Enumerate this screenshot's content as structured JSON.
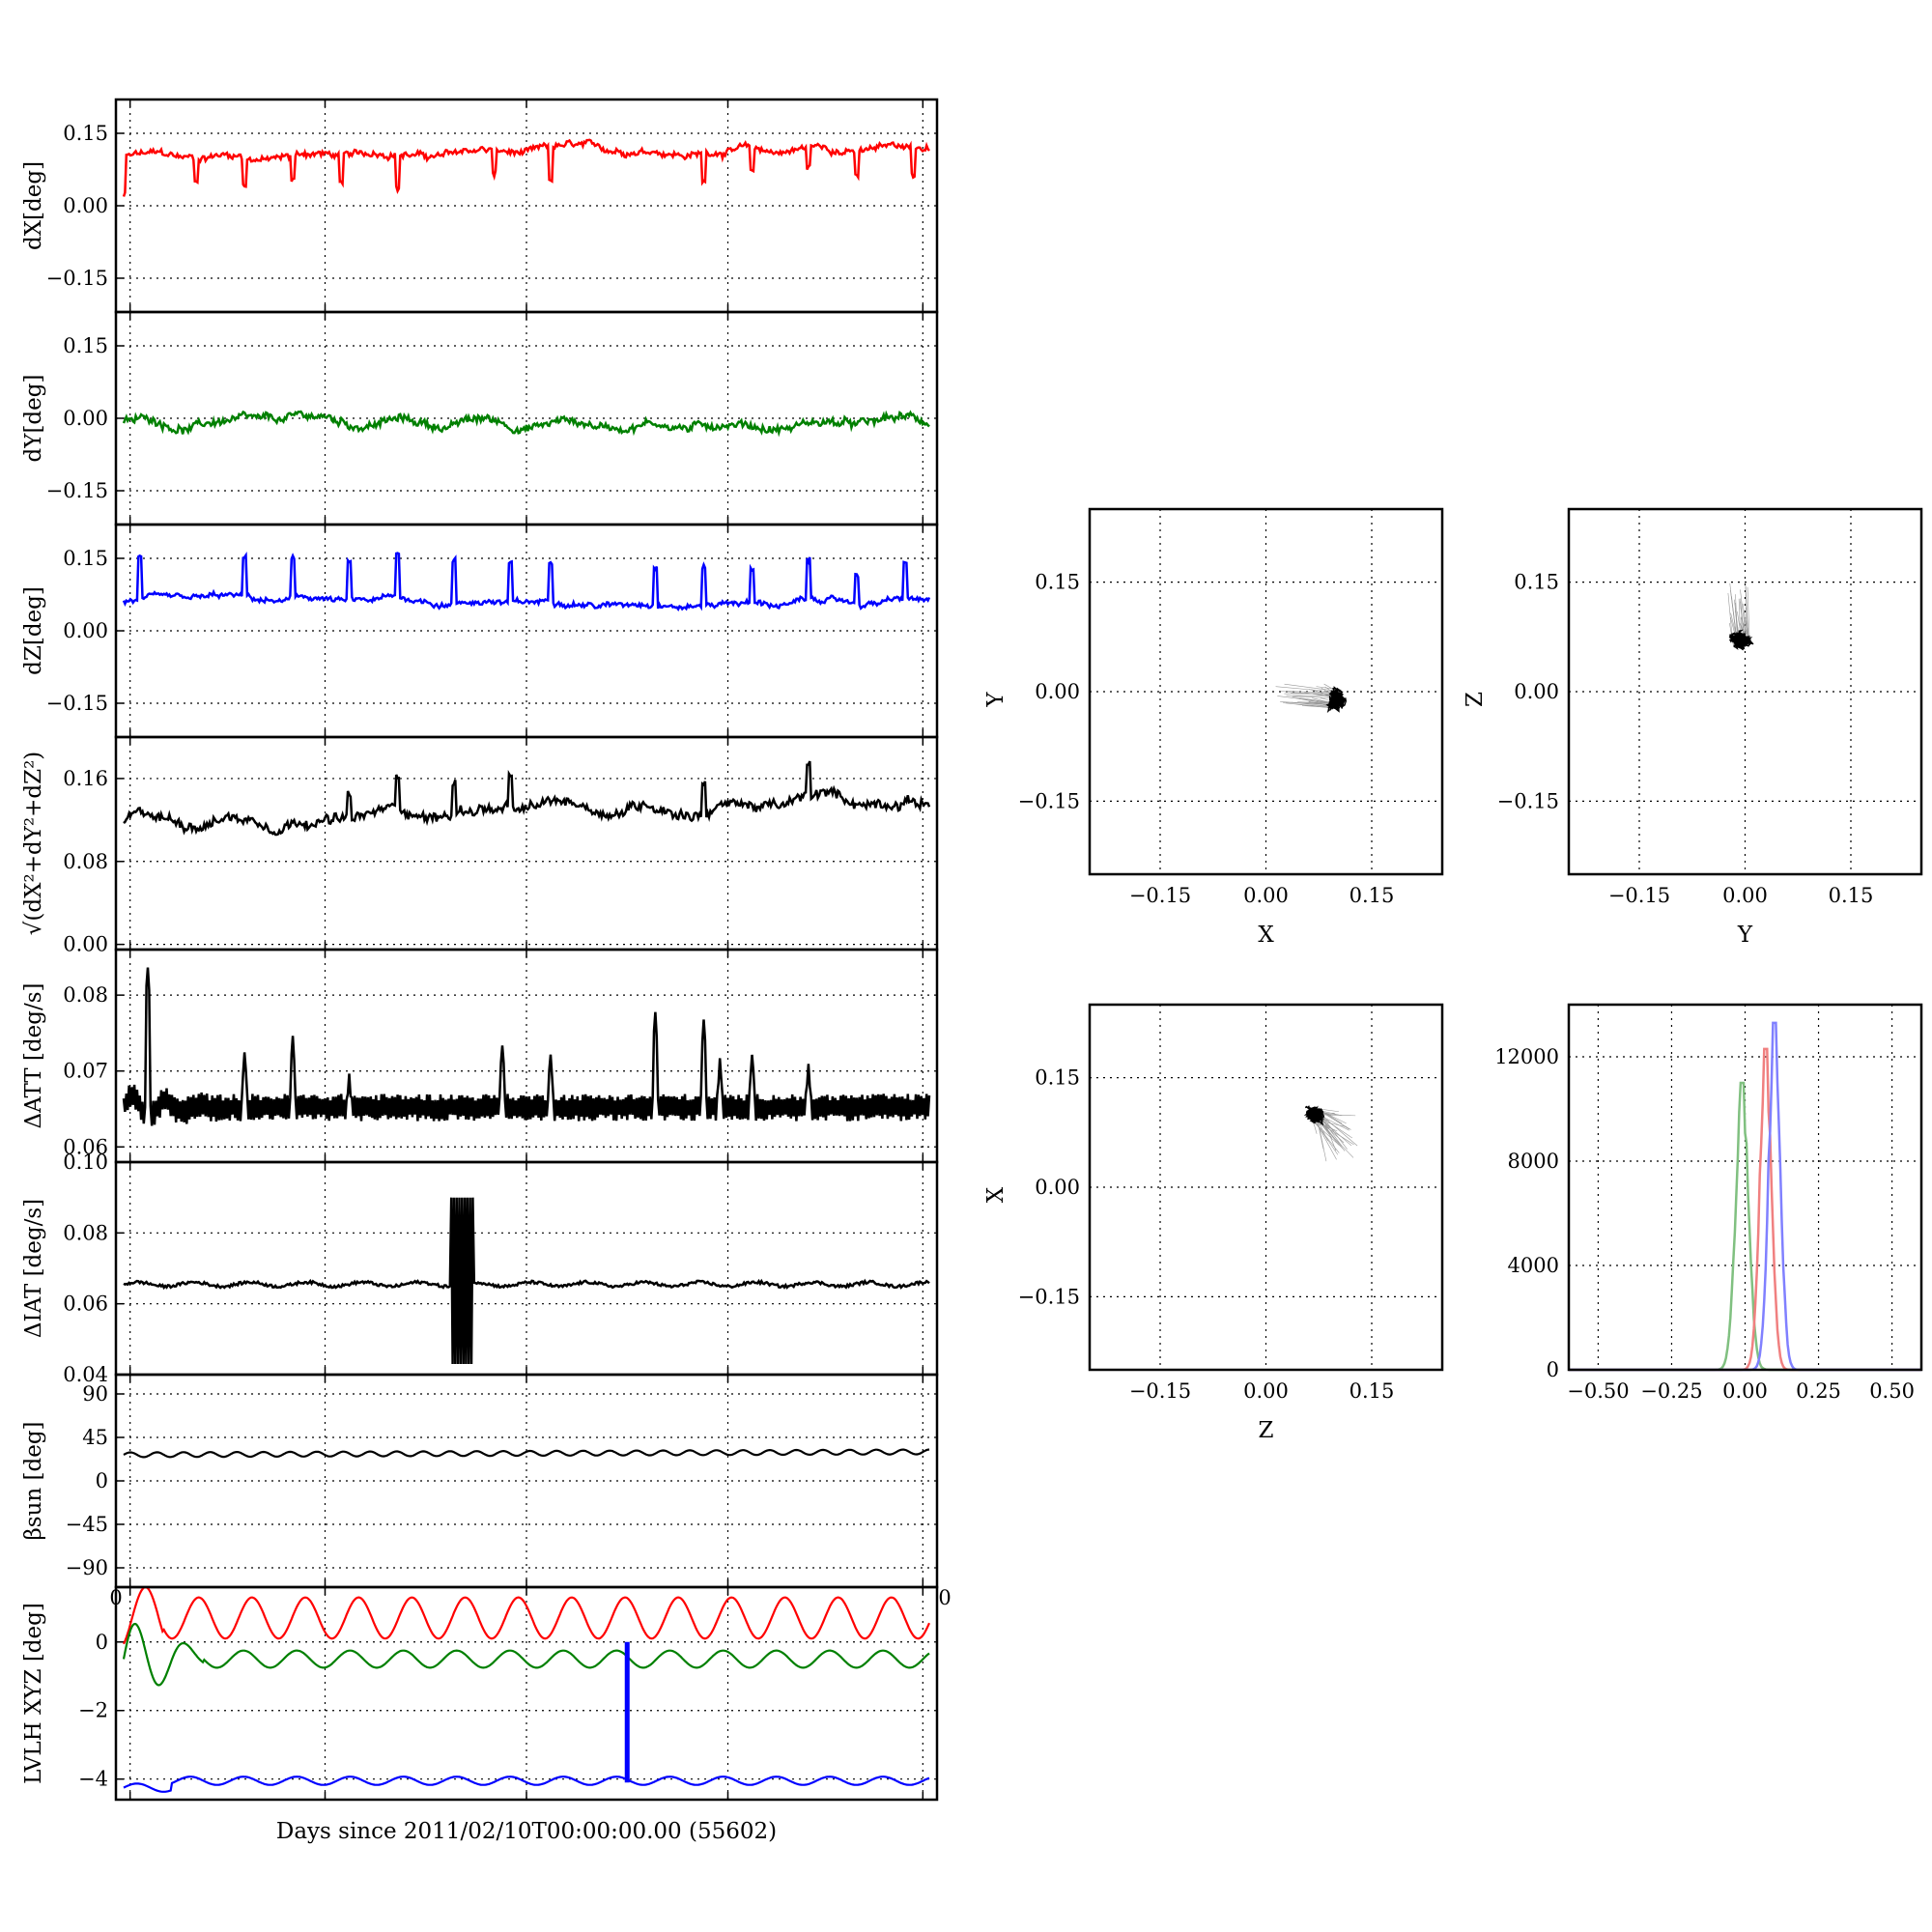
{
  "colors": {
    "x": "#ff0000",
    "y": "#008000",
    "z": "#0000ff",
    "mag": "#000000",
    "hx": "#f08080",
    "hy": "#80c080",
    "hz": "#8080ff"
  },
  "chart_data": [
    {
      "type": "line",
      "ylabel": "dX[deg]",
      "ylim": [
        -0.22,
        0.22
      ],
      "yticks": [
        "0.15",
        "0.00",
        "−0.15"
      ],
      "ytick_values": [
        0.15,
        0.0,
        -0.15
      ],
      "series": [
        {
          "color": "#ff0000",
          "base": 0.1,
          "noise": 0.01,
          "spikes": [
            [
              0.0,
              -0.08
            ],
            [
              0.09,
              -0.05
            ],
            [
              0.15,
              -0.06
            ],
            [
              0.21,
              -0.05
            ],
            [
              0.27,
              -0.06
            ],
            [
              0.34,
              -0.07
            ],
            [
              0.46,
              -0.05
            ],
            [
              0.53,
              -0.07
            ],
            [
              0.72,
              -0.06
            ],
            [
              0.78,
              -0.05
            ],
            [
              0.85,
              -0.04
            ],
            [
              0.91,
              -0.05
            ],
            [
              0.98,
              -0.06
            ]
          ]
        }
      ]
    },
    {
      "type": "line",
      "ylabel": "dY[deg]",
      "ylim": [
        -0.22,
        0.22
      ],
      "yticks": [
        "0.15",
        "0.00",
        "−0.15"
      ],
      "ytick_values": [
        0.15,
        0.0,
        -0.15
      ],
      "series": [
        {
          "color": "#008000",
          "base": -0.01,
          "noise": 0.012,
          "spikes": []
        }
      ]
    },
    {
      "type": "line",
      "ylabel": "dZ[deg]",
      "ylim": [
        -0.22,
        0.22
      ],
      "yticks": [
        "0.15",
        "0.00",
        "−0.15"
      ],
      "ytick_values": [
        0.15,
        0.0,
        -0.15
      ],
      "series": [
        {
          "color": "#0000ff",
          "base": 0.06,
          "noise": 0.008,
          "spikes": [
            [
              0.02,
              0.09
            ],
            [
              0.15,
              0.08
            ],
            [
              0.21,
              0.08
            ],
            [
              0.28,
              0.08
            ],
            [
              0.34,
              0.09
            ],
            [
              0.41,
              0.09
            ],
            [
              0.48,
              0.08
            ],
            [
              0.53,
              0.08
            ],
            [
              0.66,
              0.08
            ],
            [
              0.72,
              0.08
            ],
            [
              0.78,
              0.07
            ],
            [
              0.85,
              0.08
            ],
            [
              0.91,
              0.06
            ],
            [
              0.97,
              0.07
            ]
          ]
        }
      ]
    },
    {
      "type": "line",
      "ylabel": "√(dX²+dY²+dZ²)",
      "ylim": [
        -0.005,
        0.2
      ],
      "yticks": [
        "0.16",
        "0.08",
        "0.00"
      ],
      "ytick_values": [
        0.16,
        0.08,
        0.0
      ],
      "series": [
        {
          "color": "#000000",
          "base": 0.12,
          "noise": 0.007,
          "spikes": [
            [
              0.28,
              0.02
            ],
            [
              0.34,
              0.03
            ],
            [
              0.41,
              0.03
            ],
            [
              0.48,
              0.03
            ],
            [
              0.72,
              0.03
            ],
            [
              0.85,
              0.03
            ]
          ]
        }
      ]
    },
    {
      "type": "line",
      "ylabel": "ΔATT [deg/s]",
      "ylim": [
        0.058,
        0.086
      ],
      "yticks": [
        "0.08",
        "0.07",
        "0.06"
      ],
      "ytick_values": [
        0.08,
        0.07,
        0.06
      ],
      "series": [
        {
          "color": "#000000",
          "base": 0.0652,
          "noise": 0.0009,
          "spikes": [
            [
              0.03,
              0.018
            ],
            [
              0.15,
              0.006
            ],
            [
              0.21,
              0.008
            ],
            [
              0.28,
              0.003
            ],
            [
              0.47,
              0.007
            ],
            [
              0.53,
              0.006
            ],
            [
              0.66,
              0.011
            ],
            [
              0.72,
              0.01
            ],
            [
              0.74,
              0.005
            ],
            [
              0.78,
              0.006
            ],
            [
              0.85,
              0.004
            ]
          ]
        }
      ]
    },
    {
      "type": "line",
      "ylabel": "ΔIAT [deg/s]",
      "ylim": [
        0.04,
        0.1
      ],
      "yticks": [
        "0.10",
        "0.08",
        "0.06",
        "0.04"
      ],
      "ytick_values": [
        0.1,
        0.08,
        0.06,
        0.04
      ],
      "series": [
        {
          "color": "#000000",
          "base": 0.0655,
          "noise": 0.0008,
          "spikes": []
        }
      ]
    },
    {
      "type": "line",
      "ylabel": "βsun [deg]",
      "ylim": [
        -110,
        110
      ],
      "yticks": [
        "90",
        "45",
        "0",
        "−45",
        "−90"
      ],
      "ytick_values": [
        90,
        45,
        0,
        -45,
        -90
      ],
      "xtick_edges": [
        "0",
        "0"
      ],
      "series": [
        {
          "color": "#000000",
          "base": 27,
          "noise": 0.0,
          "spikes": []
        }
      ]
    },
    {
      "type": "line",
      "ylabel": "LVLH XYZ [deg]",
      "ylim": [
        -4.6,
        1.6
      ],
      "yticks": [
        "0",
        "−2",
        "−4"
      ],
      "ytick_values": [
        0,
        -2,
        -4
      ],
      "xlabel": "Days since 2011/02/10T00:00:00.00 (55602)",
      "series": [
        {
          "color": "#ff0000",
          "base": 0.7,
          "noise": 0.0,
          "spikes": []
        },
        {
          "color": "#008000",
          "base": -0.5,
          "noise": 0.0,
          "spikes": []
        },
        {
          "color": "#0000ff",
          "base": -4.1,
          "noise": 0.0,
          "spikes": []
        }
      ]
    },
    {
      "type": "scatter",
      "xlabel": "X",
      "ylabel": "Y",
      "xlim": [
        -0.25,
        0.25
      ],
      "ylim": [
        -0.25,
        0.25
      ],
      "xticks": [
        "−0.15",
        "0.00",
        "0.15"
      ],
      "yticks": [
        "0.15",
        "0.00",
        "−0.15"
      ],
      "tick_values": [
        -0.15,
        0.0,
        0.15
      ],
      "center": [
        0.1,
        -0.01
      ],
      "spread": [
        0.02,
        0.025
      ]
    },
    {
      "type": "scatter",
      "xlabel": "Y",
      "ylabel": "Z",
      "xlim": [
        -0.25,
        0.25
      ],
      "ylim": [
        -0.25,
        0.25
      ],
      "xticks": [
        "−0.15",
        "0.00",
        "0.15"
      ],
      "yticks": [
        "0.15",
        "0.00",
        "−0.15"
      ],
      "tick_values": [
        -0.15,
        0.0,
        0.15
      ],
      "center": [
        -0.005,
        0.07
      ],
      "spread": [
        0.025,
        0.02
      ]
    },
    {
      "type": "scatter",
      "xlabel": "Z",
      "ylabel": "X",
      "xlim": [
        -0.25,
        0.25
      ],
      "ylim": [
        -0.25,
        0.25
      ],
      "xticks": [
        "−0.15",
        "0.00",
        "0.15"
      ],
      "yticks": [
        "0.15",
        "0.00",
        "−0.15"
      ],
      "tick_values": [
        -0.15,
        0.0,
        0.15
      ],
      "center": [
        0.07,
        0.1
      ],
      "spread": [
        0.02,
        0.018
      ]
    },
    {
      "type": "histogram",
      "xlim": [
        -0.6,
        0.6
      ],
      "ylim": [
        0,
        14000
      ],
      "xticks": [
        "−0.50",
        "−0.25",
        "0.00",
        "0.25",
        "0.50"
      ],
      "xtick_values": [
        -0.5,
        -0.25,
        0.0,
        0.25,
        0.5
      ],
      "yticks": [
        "12000",
        "8000",
        "4000",
        "0"
      ],
      "ytick_values": [
        12000,
        8000,
        4000,
        0
      ],
      "series": [
        {
          "color": "#80c080",
          "peak_x": -0.01,
          "peak": 11000,
          "width": 0.022
        },
        {
          "color": "#f08080",
          "peak_x": 0.07,
          "peak": 12300,
          "width": 0.02
        },
        {
          "color": "#8080ff",
          "peak_x": 0.1,
          "peak": 13300,
          "width": 0.02
        }
      ]
    }
  ]
}
